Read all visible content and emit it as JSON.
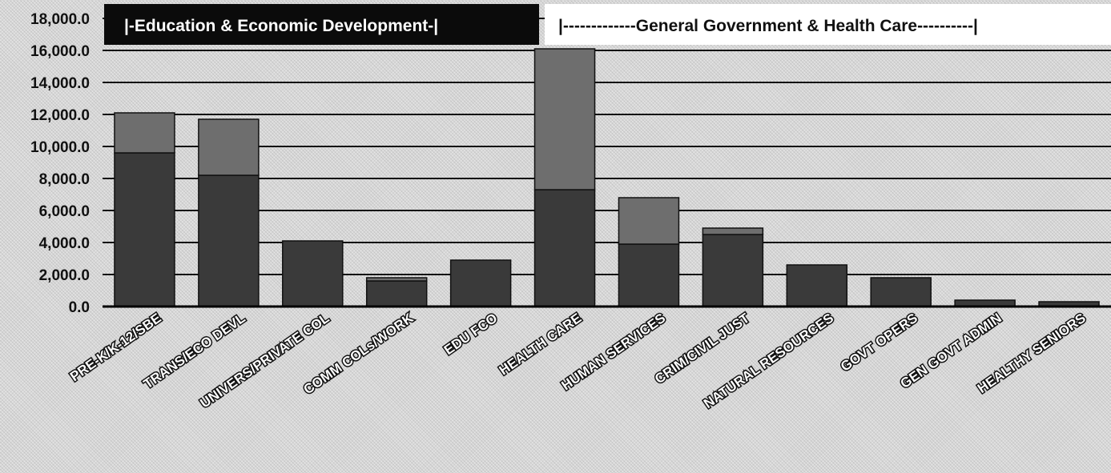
{
  "chart_data": {
    "type": "bar",
    "stacked": true,
    "categories": [
      "PRE-K/K-12/SBE",
      "TRANS/ECO DEVL",
      "UNIVERS/PRIVATE COL",
      "COMM COLs/WORK",
      "EDU FCO",
      "HEALTH CARE",
      "HUMAN SERVICES",
      "CRIM/CIVIL JUST",
      "NATURAL RESOURCES",
      "GOVT OPERS",
      "GEN GOVT ADMIN",
      "HEALTHY SENIORS"
    ],
    "series": [
      {
        "values": [
          9600,
          8200,
          4100,
          1600,
          2900,
          7300,
          3900,
          4500,
          2600,
          1800,
          400,
          300
        ],
        "color": "#3a3a3a"
      },
      {
        "values": [
          2500,
          3500,
          0,
          200,
          0,
          8800,
          2900,
          400,
          0,
          0,
          0,
          0
        ],
        "color": "#6e6e6e"
      }
    ],
    "ylim": [
      0,
      18000
    ],
    "yticks": [
      "0.0",
      "2,000.0",
      "4,000.0",
      "6,000.0",
      "8,000.0",
      "10,000.0",
      "12,000.0",
      "14,000.0",
      "16,000.0",
      "18,000.0"
    ],
    "grid": true,
    "annotations": [
      {
        "text": "|-Education & Economic Development-|",
        "style": "dark"
      },
      {
        "text": "|-------------General Government & Health Care----------|",
        "style": "light"
      }
    ]
  }
}
